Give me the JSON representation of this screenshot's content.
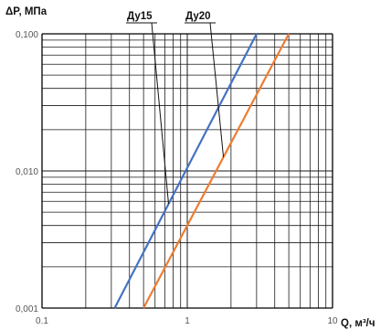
{
  "chart_data": {
    "type": "line",
    "title": "",
    "xlabel": "Q, м³/ч",
    "ylabel": "ΔP, МПа",
    "x_scale": "log",
    "y_scale": "log",
    "xlim": [
      0.1,
      10
    ],
    "ylim": [
      0.001,
      0.1
    ],
    "grid": true,
    "x_tick_labels": [
      "0.1",
      "1",
      "10"
    ],
    "y_tick_labels": [
      "0,001",
      "0,010",
      "0,100"
    ],
    "series": [
      {
        "name": "Ду15",
        "color": "#4472C4",
        "x": [
          0.316,
          3.0
        ],
        "y": [
          0.001,
          0.1
        ]
      },
      {
        "name": "Ду20",
        "color": "#ED7D31",
        "x": [
          0.5,
          5.0
        ],
        "y": [
          0.001,
          0.1
        ]
      }
    ],
    "annotations": [
      {
        "text": "Ду15",
        "points_to": "Ду15"
      },
      {
        "text": "Ду20",
        "points_to": "Ду20"
      }
    ],
    "grid_color": "#1a1a1a",
    "axis_color": "#000000"
  }
}
